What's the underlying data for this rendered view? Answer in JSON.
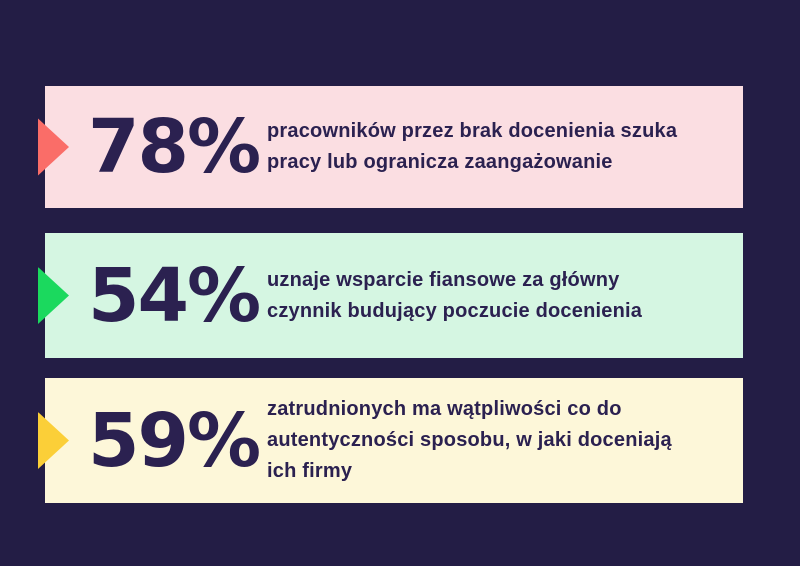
{
  "theme": {
    "background": "#231d45",
    "text_color": "#2b2150"
  },
  "chart_data": {
    "type": "bar",
    "title": "",
    "categories": [
      "pracowników przez brak docenienia szuka pracy lub ogranicza zaangażowanie",
      "uznaje wsparcie fiansowe za główny czynnik budujący poczucie docenienia",
      "zatrudnionych ma wątpliwości co do autentyczności sposobu, w jaki doceniają ich firmy"
    ],
    "values": [
      78,
      54,
      59
    ],
    "value_labels": [
      "78%",
      "54%",
      "59%"
    ],
    "bar_colors": [
      "#fbdee2",
      "#d5f6e2",
      "#fdf7d9"
    ],
    "marker_colors": [
      "#fa6d68",
      "#1bd95e",
      "#fbcf38"
    ],
    "xlabel": "",
    "ylabel": "",
    "legend": "off",
    "grid": "off"
  },
  "rows": [
    {
      "value": "78%",
      "bar_color": "#fbdee2",
      "arrow_color": "#fa6d68",
      "lines": [
        "pracowników przez brak docenienia szuka",
        "pracy lub ogranicza zaangażowanie"
      ]
    },
    {
      "value": "54%",
      "bar_color": "#d5f6e2",
      "arrow_color": "#1bd95e",
      "lines": [
        "uznaje wsparcie fiansowe za główny",
        "czynnik budujący poczucie docenienia"
      ]
    },
    {
      "value": "59%",
      "bar_color": "#fdf7d9",
      "arrow_color": "#fbcf38",
      "lines": [
        "zatrudnionych ma wątpliwości co do",
        "autentyczności sposobu, w jaki doceniają",
        "ich firmy"
      ]
    }
  ]
}
